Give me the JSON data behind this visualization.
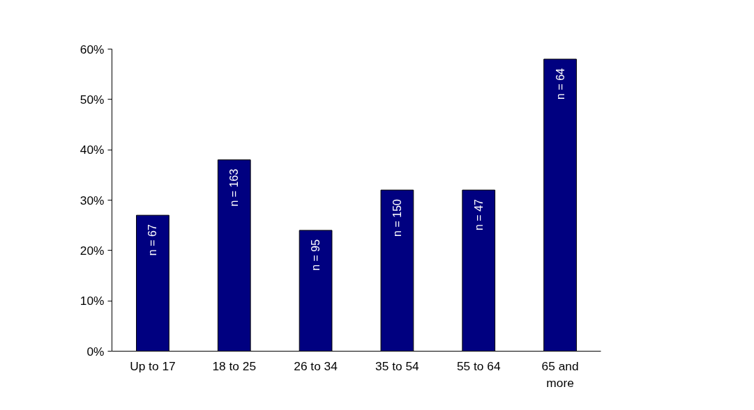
{
  "chart_data": {
    "type": "bar",
    "categories": [
      "Up to 17",
      "18 to 25",
      "26 to 34",
      "35 to 54",
      "55 to 64",
      "65 and\nmore"
    ],
    "values": [
      27,
      38,
      24,
      32,
      32,
      58
    ],
    "color": "#000080",
    "ylim": [
      0,
      60
    ],
    "yticks": [
      {
        "value": 0,
        "label": "0%"
      },
      {
        "value": 10,
        "label": "10%"
      },
      {
        "value": 20,
        "label": "20%"
      },
      {
        "value": 30,
        "label": "30%"
      },
      {
        "value": 40,
        "label": "40%"
      },
      {
        "value": 50,
        "label": "50%"
      },
      {
        "value": 60,
        "label": "60%"
      }
    ],
    "grid": false,
    "annotations": [
      "n = 67",
      "n = 163",
      "n = 95",
      "n = 150",
      "n = 47",
      "n = 64"
    ]
  }
}
